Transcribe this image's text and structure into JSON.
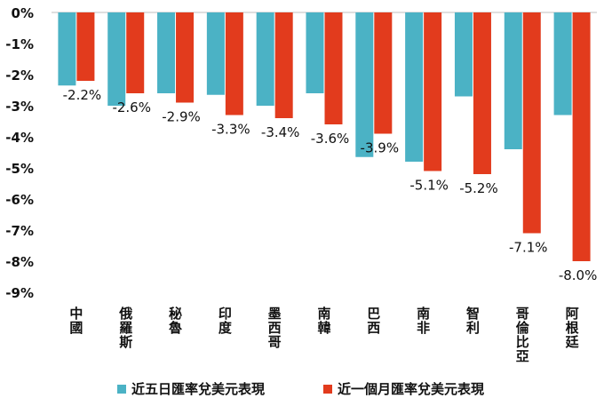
{
  "chart_data": {
    "type": "bar",
    "categories": [
      "中國",
      "俄羅斯",
      "秘魯",
      "印度",
      "墨西哥",
      "南韓",
      "巴西",
      "南非",
      "智利",
      "哥倫比亞",
      "阿根廷"
    ],
    "series": [
      {
        "name": "近五日匯率兌美元表現",
        "color": "#4BB2C5",
        "values": [
          -2.35,
          -3.0,
          -2.6,
          -2.65,
          -3.0,
          -2.6,
          -4.65,
          -4.8,
          -2.7,
          -4.4,
          -3.3
        ]
      },
      {
        "name": "近一個月匯率兌美元表現",
        "color": "#E23B1D",
        "values": [
          -2.2,
          -2.6,
          -2.9,
          -3.3,
          -3.4,
          -3.6,
          -3.9,
          -5.1,
          -5.2,
          -7.1,
          -8.0
        ],
        "labels": [
          "-2.2%",
          "-2.6%",
          "-2.9%",
          "-3.3%",
          "-3.4%",
          "-3.6%",
          "-3.9%",
          "-5.1%",
          "-5.2%",
          "-7.1%",
          "-8.0%"
        ]
      }
    ],
    "ylim": [
      -9,
      0
    ],
    "yticks": [
      "0%",
      "-1%",
      "-2%",
      "-3%",
      "-4%",
      "-5%",
      "-6%",
      "-7%",
      "-8%",
      "-9%"
    ],
    "grid": false,
    "legend_position": "bottom"
  }
}
